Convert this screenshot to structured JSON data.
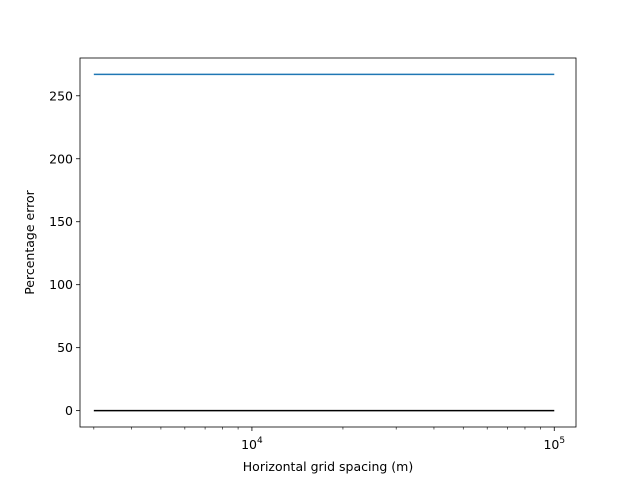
{
  "chart_data": {
    "type": "line",
    "title": "",
    "xlabel": "Horizontal grid spacing (m)",
    "ylabel": "Percentage error",
    "xscale": "log",
    "xlim": [
      2700,
      118000
    ],
    "ylim": [
      -13,
      280
    ],
    "grid": false,
    "x_ticks": [
      {
        "value": 10000,
        "base": "10",
        "exp": "4"
      },
      {
        "value": 100000,
        "base": "10",
        "exp": "5"
      }
    ],
    "x_minor_ticks": [
      3000,
      4000,
      5000,
      6000,
      7000,
      8000,
      9000,
      20000,
      30000,
      40000,
      50000,
      60000,
      70000,
      80000,
      90000
    ],
    "y_ticks": [
      {
        "value": 0,
        "label": "0"
      },
      {
        "value": 50,
        "label": "50"
      },
      {
        "value": 100,
        "label": "100"
      },
      {
        "value": 150,
        "label": "150"
      },
      {
        "value": 200,
        "label": "200"
      },
      {
        "value": 250,
        "label": "250"
      }
    ],
    "series": [
      {
        "color": "#1f77b4",
        "x": [
          3000,
          100000
        ],
        "y": [
          267,
          267
        ]
      },
      {
        "color": "#000000",
        "x": [
          3000,
          100000
        ],
        "y": [
          0,
          0
        ]
      }
    ]
  }
}
